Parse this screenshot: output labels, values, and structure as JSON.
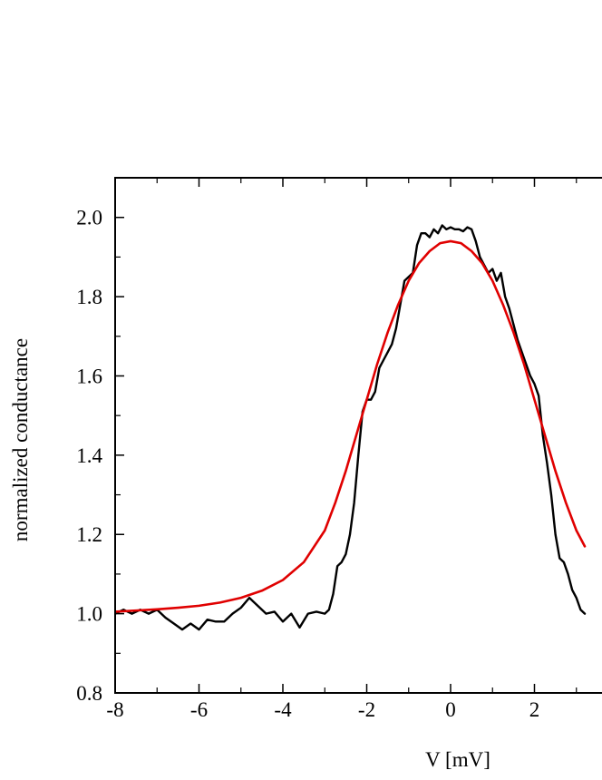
{
  "chart_data": {
    "type": "line",
    "title": "",
    "xlabel": "V [mV]",
    "ylabel": "normalized conductance",
    "xlim": [
      -8,
      8
    ],
    "ylim": [
      0.8,
      2.1
    ],
    "x_ticks": [
      {
        "value": -8,
        "label": "-8"
      },
      {
        "value": -6,
        "label": "-6"
      },
      {
        "value": -4,
        "label": "-4"
      },
      {
        "value": -2,
        "label": "-2"
      },
      {
        "value": 0,
        "label": "0"
      },
      {
        "value": 2,
        "label": "2"
      }
    ],
    "y_ticks": [
      {
        "value": 0.8,
        "label": "0.8"
      },
      {
        "value": 1.0,
        "label": "1.0"
      },
      {
        "value": 1.2,
        "label": "1.2"
      },
      {
        "value": 1.4,
        "label": "1.4"
      },
      {
        "value": 1.6,
        "label": "1.6"
      },
      {
        "value": 1.8,
        "label": "1.8"
      },
      {
        "value": 2.0,
        "label": "2.0"
      }
    ],
    "grid": false,
    "legend": "none",
    "series": [
      {
        "color": "#000000",
        "points": [
          [
            -8.0,
            1.0
          ],
          [
            -7.8,
            1.01
          ],
          [
            -7.6,
            1.0
          ],
          [
            -7.4,
            1.01
          ],
          [
            -7.2,
            1.0
          ],
          [
            -7.0,
            1.01
          ],
          [
            -6.8,
            0.99
          ],
          [
            -6.6,
            0.975
          ],
          [
            -6.4,
            0.96
          ],
          [
            -6.2,
            0.975
          ],
          [
            -6.0,
            0.96
          ],
          [
            -5.8,
            0.985
          ],
          [
            -5.6,
            0.98
          ],
          [
            -5.4,
            0.98
          ],
          [
            -5.2,
            1.0
          ],
          [
            -5.0,
            1.015
          ],
          [
            -4.8,
            1.04
          ],
          [
            -4.6,
            1.02
          ],
          [
            -4.4,
            1.0
          ],
          [
            -4.2,
            1.005
          ],
          [
            -4.0,
            0.98
          ],
          [
            -3.8,
            1.0
          ],
          [
            -3.6,
            0.965
          ],
          [
            -3.4,
            1.0
          ],
          [
            -3.2,
            1.005
          ],
          [
            -3.0,
            1.0
          ],
          [
            -2.9,
            1.01
          ],
          [
            -2.8,
            1.05
          ],
          [
            -2.7,
            1.12
          ],
          [
            -2.6,
            1.13
          ],
          [
            -2.5,
            1.15
          ],
          [
            -2.4,
            1.2
          ],
          [
            -2.3,
            1.28
          ],
          [
            -2.2,
            1.4
          ],
          [
            -2.1,
            1.51
          ],
          [
            -2.0,
            1.54
          ],
          [
            -1.9,
            1.54
          ],
          [
            -1.8,
            1.56
          ],
          [
            -1.7,
            1.62
          ],
          [
            -1.6,
            1.64
          ],
          [
            -1.5,
            1.66
          ],
          [
            -1.4,
            1.68
          ],
          [
            -1.3,
            1.72
          ],
          [
            -1.2,
            1.78
          ],
          [
            -1.1,
            1.84
          ],
          [
            -1.0,
            1.85
          ],
          [
            -0.9,
            1.86
          ],
          [
            -0.8,
            1.93
          ],
          [
            -0.7,
            1.96
          ],
          [
            -0.6,
            1.96
          ],
          [
            -0.5,
            1.95
          ],
          [
            -0.4,
            1.97
          ],
          [
            -0.3,
            1.96
          ],
          [
            -0.2,
            1.98
          ],
          [
            -0.1,
            1.97
          ],
          [
            0.0,
            1.975
          ],
          [
            0.1,
            1.97
          ],
          [
            0.2,
            1.97
          ],
          [
            0.3,
            1.965
          ],
          [
            0.4,
            1.975
          ],
          [
            0.5,
            1.97
          ],
          [
            0.6,
            1.94
          ],
          [
            0.7,
            1.9
          ],
          [
            0.8,
            1.88
          ],
          [
            0.9,
            1.86
          ],
          [
            1.0,
            1.87
          ],
          [
            1.1,
            1.84
          ],
          [
            1.2,
            1.86
          ],
          [
            1.3,
            1.8
          ],
          [
            1.4,
            1.77
          ],
          [
            1.5,
            1.73
          ],
          [
            1.6,
            1.69
          ],
          [
            1.7,
            1.66
          ],
          [
            1.8,
            1.63
          ],
          [
            1.9,
            1.6
          ],
          [
            2.0,
            1.58
          ],
          [
            2.1,
            1.55
          ],
          [
            2.2,
            1.45
          ],
          [
            2.3,
            1.38
          ],
          [
            2.4,
            1.3
          ],
          [
            2.5,
            1.2
          ],
          [
            2.6,
            1.14
          ],
          [
            2.7,
            1.13
          ],
          [
            2.8,
            1.1
          ],
          [
            2.9,
            1.06
          ],
          [
            3.0,
            1.04
          ],
          [
            3.1,
            1.01
          ],
          [
            3.2,
            1.0
          ]
        ]
      },
      {
        "color": "#e00000",
        "points": [
          [
            -8.0,
            1.005
          ],
          [
            -7.5,
            1.008
          ],
          [
            -7.0,
            1.011
          ],
          [
            -6.5,
            1.015
          ],
          [
            -6.0,
            1.02
          ],
          [
            -5.5,
            1.028
          ],
          [
            -5.0,
            1.04
          ],
          [
            -4.5,
            1.058
          ],
          [
            -4.0,
            1.085
          ],
          [
            -3.5,
            1.13
          ],
          [
            -3.0,
            1.21
          ],
          [
            -2.75,
            1.28
          ],
          [
            -2.5,
            1.36
          ],
          [
            -2.25,
            1.45
          ],
          [
            -2.0,
            1.54
          ],
          [
            -1.75,
            1.63
          ],
          [
            -1.5,
            1.71
          ],
          [
            -1.25,
            1.78
          ],
          [
            -1.0,
            1.84
          ],
          [
            -0.75,
            1.885
          ],
          [
            -0.5,
            1.915
          ],
          [
            -0.25,
            1.935
          ],
          [
            0.0,
            1.94
          ],
          [
            0.25,
            1.935
          ],
          [
            0.5,
            1.915
          ],
          [
            0.75,
            1.885
          ],
          [
            1.0,
            1.84
          ],
          [
            1.25,
            1.78
          ],
          [
            1.5,
            1.71
          ],
          [
            1.75,
            1.63
          ],
          [
            2.0,
            1.54
          ],
          [
            2.25,
            1.45
          ],
          [
            2.5,
            1.36
          ],
          [
            2.75,
            1.28
          ],
          [
            3.0,
            1.21
          ],
          [
            3.2,
            1.17
          ]
        ]
      }
    ]
  }
}
